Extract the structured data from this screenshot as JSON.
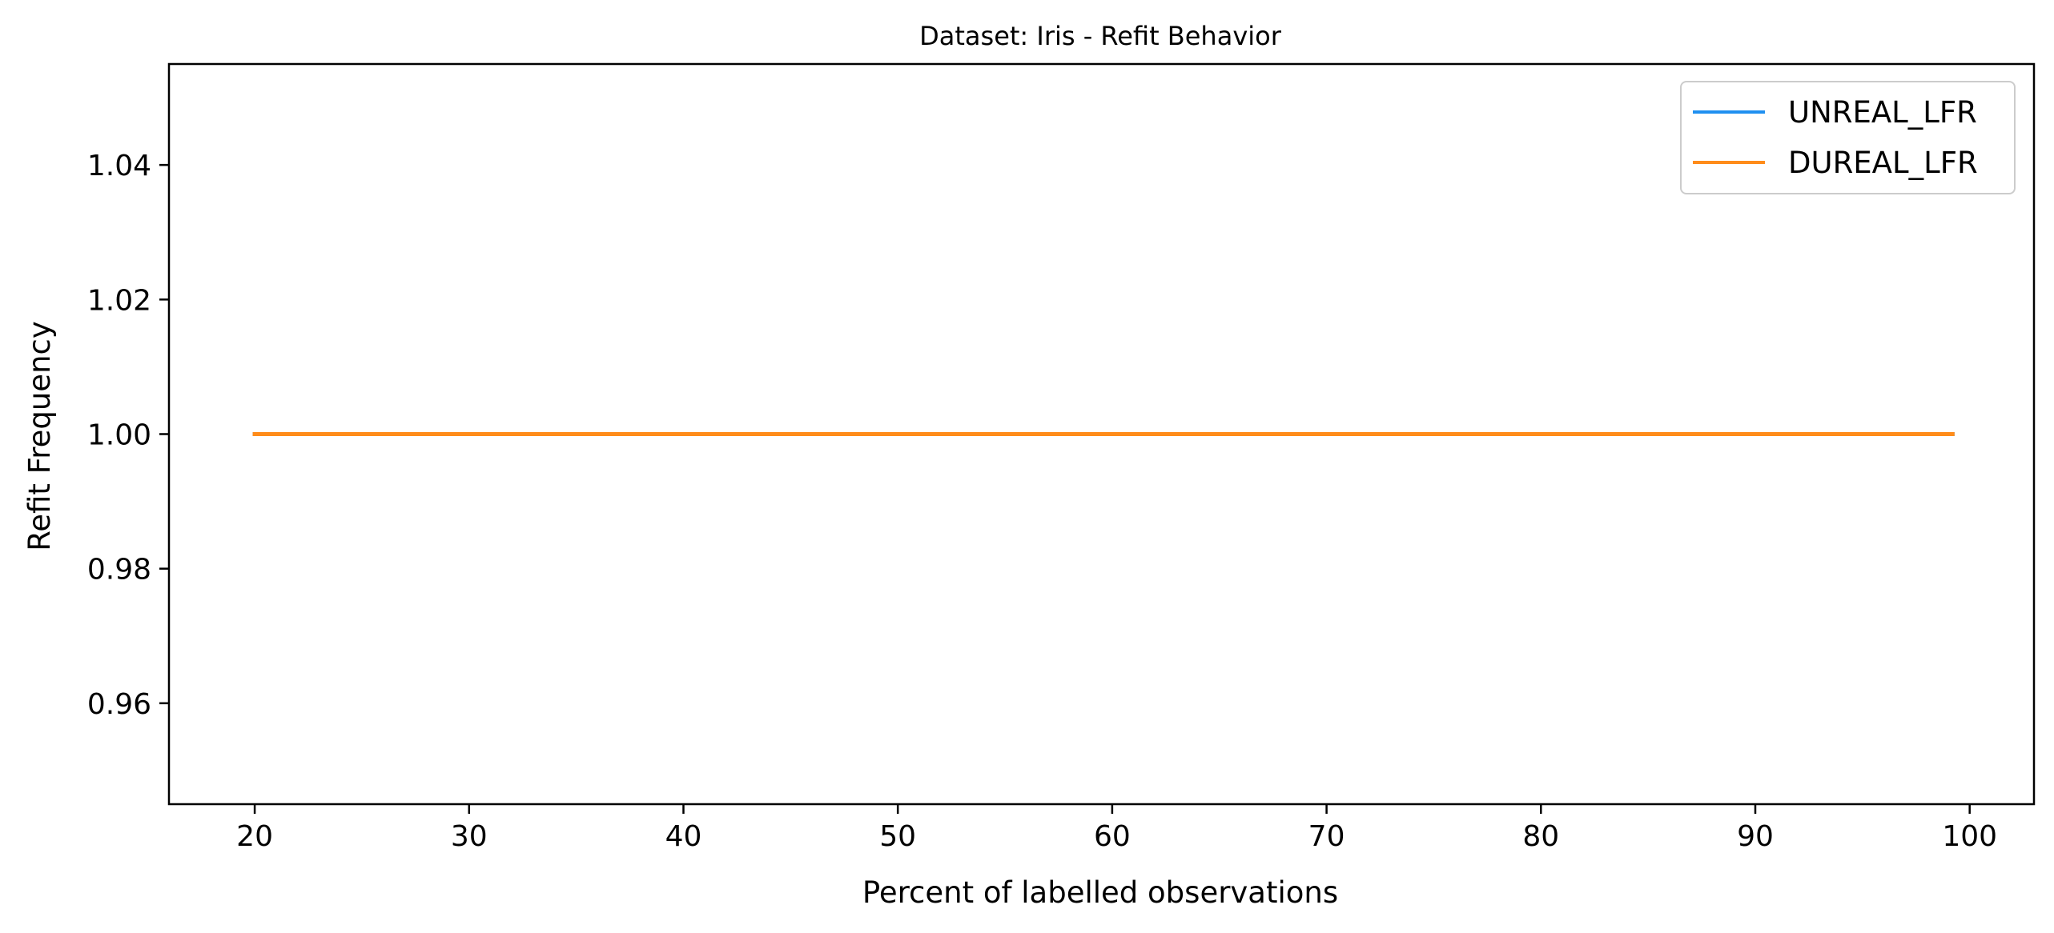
{
  "chart_data": {
    "type": "line",
    "title": "Dataset: Iris - Refit Behavior",
    "xlabel": "Percent of labelled observations",
    "ylabel": "Refit Frequency",
    "xlim": [
      16,
      103
    ],
    "ylim": [
      0.945,
      1.055
    ],
    "xticks": [
      20,
      30,
      40,
      50,
      60,
      70,
      80,
      90,
      100
    ],
    "yticks": [
      0.96,
      0.98,
      1.0,
      1.02,
      1.04
    ],
    "ytick_labels": [
      "0.96",
      "0.98",
      "1.00",
      "1.02",
      "1.04"
    ],
    "grid": false,
    "legend_position": "top-right",
    "series": [
      {
        "name": "UNREAL_LFR",
        "color": "#1f8ff0",
        "x": [
          20,
          99.2
        ],
        "y": [
          1.0,
          1.0
        ]
      },
      {
        "name": "DUREAL_LFR",
        "color": "#ff8c1a",
        "x": [
          20,
          99.2
        ],
        "y": [
          1.0,
          1.0
        ]
      }
    ]
  }
}
